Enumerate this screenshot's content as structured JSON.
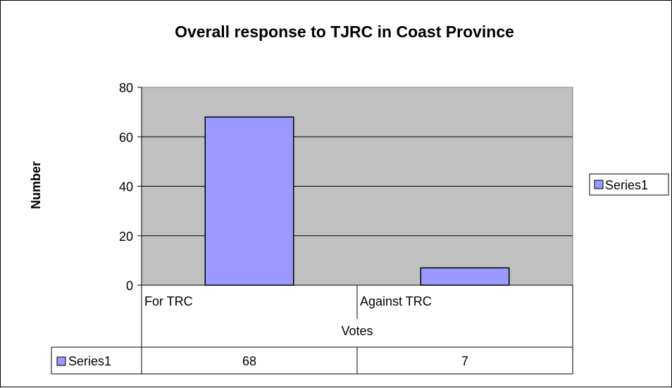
{
  "chart_data": {
    "type": "bar",
    "title": "Overall response to TJRC in Coast Province",
    "xlabel": "Votes",
    "ylabel": "Number",
    "categories": [
      "For TRC",
      "Against TRC"
    ],
    "series": [
      {
        "name": "Series1",
        "values": [
          68,
          7
        ],
        "color": "#9999ff"
      }
    ],
    "ylim": [
      0,
      80
    ],
    "yticks": [
      "0",
      "20",
      "40",
      "60",
      "80"
    ],
    "grid": true,
    "legend": "right",
    "data_table": {
      "row_label": "Series1",
      "values": [
        "68",
        "7"
      ]
    },
    "plot_background": "#c0c0c0"
  }
}
